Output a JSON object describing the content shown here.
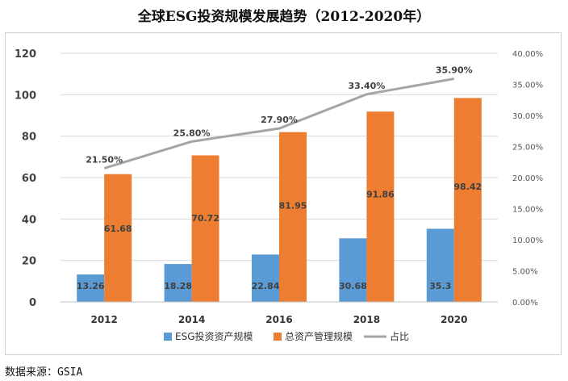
{
  "title": "全球ESG投资规模发展趋势（2012-2020年）",
  "source": "数据来源：GSIA",
  "chart_data": {
    "type": "bar",
    "categories": [
      "2012",
      "2014",
      "2016",
      "2018",
      "2020"
    ],
    "series": [
      {
        "name": "ESG投资资产规模",
        "type": "bar",
        "axis": "left",
        "color": "#5b9bd5",
        "values": [
          13.26,
          18.28,
          22.84,
          30.68,
          35.3
        ],
        "labels": [
          "13.26",
          "18.28",
          "22.84",
          "30.68",
          "35.3"
        ]
      },
      {
        "name": "总资产管理规模",
        "type": "bar",
        "axis": "left",
        "color": "#ed7d31",
        "values": [
          61.68,
          70.72,
          81.95,
          91.86,
          98.42
        ],
        "labels": [
          "61.68",
          "70.72",
          "81.95",
          "91.86",
          "98.42"
        ]
      },
      {
        "name": "占比",
        "type": "line",
        "axis": "right",
        "color": "#a5a5a5",
        "values": [
          21.5,
          25.8,
          27.9,
          33.4,
          35.9
        ],
        "labels": [
          "21.50%",
          "25.80%",
          "27.90%",
          "33.40%",
          "35.90%"
        ]
      }
    ],
    "ylim": [
      0,
      120
    ],
    "yticks": [
      "0",
      "20",
      "40",
      "60",
      "80",
      "100",
      "120"
    ],
    "y2lim": [
      0,
      40
    ],
    "y2ticks": [
      "0.00%",
      "5.00%",
      "10.00%",
      "15.00%",
      "20.00%",
      "25.00%",
      "30.00%",
      "35.00%",
      "40.00%"
    ],
    "grid": true,
    "legend": "bottom"
  }
}
